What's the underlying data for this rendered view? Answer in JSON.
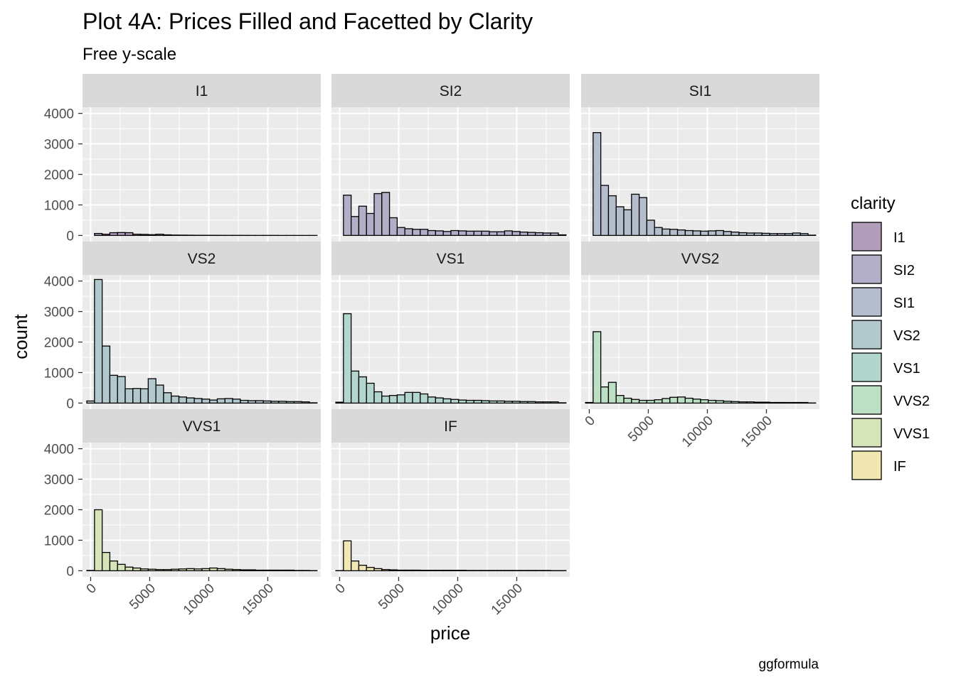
{
  "chart_data": {
    "type": "bar",
    "title": "Plot 4A: Prices Filled and Facetted by Clarity",
    "subtitle": "Free y-scale",
    "xlabel": "price",
    "ylabel": "count",
    "caption": "ggformula",
    "legend_title": "clarity",
    "legend_position": "right",
    "grid": true,
    "xlim": [
      -690,
      19490
    ],
    "ylim": [
      -200,
      4200
    ],
    "x_ticks": [
      0,
      5000,
      10000,
      15000
    ],
    "x_tick_labels": [
      "0",
      "5000",
      "10000",
      "15000"
    ],
    "y_ticks": [
      0,
      1000,
      2000,
      3000,
      4000
    ],
    "y_tick_labels": [
      "0",
      "1000",
      "2000",
      "3000",
      "4000"
    ],
    "bin_width": 650,
    "bin_starts": [
      -325,
      325,
      975,
      1625,
      2275,
      2925,
      3575,
      4225,
      4875,
      5525,
      6175,
      6825,
      7475,
      8125,
      8775,
      9425,
      10075,
      10725,
      11375,
      12025,
      12675,
      13325,
      13975,
      14625,
      15275,
      15925,
      16575,
      17225,
      17875,
      18525
    ],
    "series": [
      {
        "name": "I1",
        "color": "#b19cba",
        "values": [
          0,
          65,
          40,
          90,
          95,
          90,
          40,
          35,
          25,
          40,
          20,
          12,
          10,
          8,
          6,
          5,
          5,
          4,
          3,
          3,
          3,
          2,
          2,
          2,
          2,
          1,
          1,
          1,
          1,
          1
        ]
      },
      {
        "name": "SI2",
        "color": "#b3aec8",
        "values": [
          0,
          1320,
          620,
          960,
          720,
          1370,
          1410,
          580,
          260,
          220,
          200,
          200,
          160,
          150,
          130,
          160,
          150,
          140,
          140,
          140,
          120,
          120,
          150,
          130,
          110,
          100,
          90,
          80,
          80,
          20
        ]
      },
      {
        "name": "SI1",
        "color": "#b3bdcc",
        "values": [
          0,
          3370,
          1640,
          1300,
          940,
          840,
          1350,
          1240,
          500,
          260,
          210,
          200,
          180,
          160,
          150,
          140,
          150,
          160,
          130,
          110,
          90,
          80,
          80,
          70,
          60,
          60,
          60,
          80,
          60,
          10
        ]
      },
      {
        "name": "VS2",
        "color": "#b1c8cc",
        "values": [
          70,
          4050,
          1870,
          910,
          870,
          470,
          480,
          470,
          800,
          590,
          340,
          230,
          200,
          170,
          150,
          130,
          100,
          140,
          150,
          130,
          90,
          80,
          80,
          70,
          60,
          60,
          50,
          50,
          40,
          10
        ]
      },
      {
        "name": "VS1",
        "color": "#b2d6cd",
        "values": [
          30,
          2930,
          1050,
          860,
          650,
          370,
          230,
          250,
          270,
          350,
          350,
          300,
          200,
          170,
          140,
          120,
          100,
          90,
          90,
          80,
          70,
          70,
          60,
          60,
          50,
          50,
          40,
          40,
          40,
          10
        ]
      },
      {
        "name": "VVS2",
        "color": "#bce0c4",
        "values": [
          20,
          2340,
          530,
          680,
          250,
          160,
          120,
          90,
          90,
          110,
          150,
          190,
          200,
          160,
          130,
          110,
          90,
          80,
          60,
          50,
          40,
          40,
          30,
          30,
          20,
          20,
          20,
          20,
          20,
          5
        ]
      },
      {
        "name": "VVS1",
        "color": "#d6e4b8",
        "values": [
          10,
          2000,
          600,
          320,
          210,
          120,
          90,
          60,
          50,
          40,
          40,
          50,
          60,
          70,
          60,
          70,
          90,
          70,
          50,
          40,
          30,
          30,
          20,
          20,
          20,
          20,
          20,
          10,
          10,
          5
        ]
      },
      {
        "name": "IF",
        "color": "#f0e7b2",
        "values": [
          5,
          980,
          320,
          180,
          110,
          70,
          40,
          30,
          20,
          20,
          20,
          15,
          15,
          15,
          15,
          15,
          15,
          10,
          10,
          10,
          10,
          10,
          10,
          10,
          10,
          10,
          10,
          10,
          5,
          5
        ]
      }
    ]
  }
}
